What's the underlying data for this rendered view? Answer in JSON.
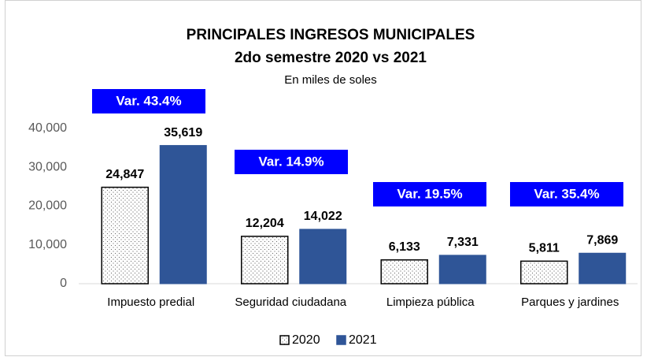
{
  "chart_data": {
    "type": "bar",
    "title": "PRINCIPALES INGRESOS MUNICIPALES",
    "subtitle": "2do semestre 2020 vs 2021",
    "note": "En miles  de soles",
    "categories": [
      "Impuesto predial",
      "Seguridad ciudadana",
      "Limpieza pública",
      "Parques y jardines"
    ],
    "series": [
      {
        "name": "2020",
        "color": "#ffffff",
        "pattern": "dotted",
        "values": [
          24847,
          12204,
          6133,
          5811
        ],
        "value_labels": [
          "24,847",
          "12,204",
          "6,133",
          "5,811"
        ]
      },
      {
        "name": "2021",
        "color": "#2f5597",
        "values": [
          35619,
          14022,
          7331,
          7869
        ],
        "value_labels": [
          "35,619",
          "14,022",
          "7,331",
          "7,869"
        ]
      }
    ],
    "annotations": [
      "Var. 43.4%",
      "Var. 14.9%",
      "Var. 19.5%",
      "Var. 35.4%"
    ],
    "ylim": [
      0,
      40000
    ],
    "yticks": [
      0,
      {
        "value": 10000,
        "label": "10,000"
      },
      {
        "value": 20000,
        "label": "20,000"
      },
      {
        "value": 30000,
        "label": "30,000"
      },
      {
        "value": 40000,
        "label": "40,000"
      }
    ],
    "grid": false,
    "legend": "bottom"
  }
}
